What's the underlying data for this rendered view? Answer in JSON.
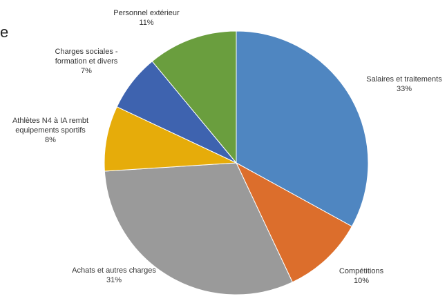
{
  "title_fragment": "e",
  "chart_data": {
    "type": "pie",
    "start_angle_deg": 0,
    "direction": "clockwise",
    "slices": [
      {
        "label_lines": [
          "Salaires et traitements"
        ],
        "value": 33,
        "value_label": "33%",
        "color": "#4f86c1"
      },
      {
        "label_lines": [
          "Compétitions"
        ],
        "value": 10,
        "value_label": "10%",
        "color": "#dc6e2c"
      },
      {
        "label_lines": [
          "Achats et autres charges"
        ],
        "value": 31,
        "value_label": "31%",
        "color": "#9a9a9a"
      },
      {
        "label_lines": [
          "Athlètes N4 à IA rembt",
          "equipements sportifs"
        ],
        "value": 8,
        "value_label": "8%",
        "color": "#e6ac0a"
      },
      {
        "label_lines": [
          "Charges sociales -",
          "formation et divers"
        ],
        "value": 7,
        "value_label": "7%",
        "color": "#3e63af"
      },
      {
        "label_lines": [
          "Personnel extérieur"
        ],
        "value": 11,
        "value_label": "11%",
        "color": "#6a9e3e"
      }
    ]
  }
}
